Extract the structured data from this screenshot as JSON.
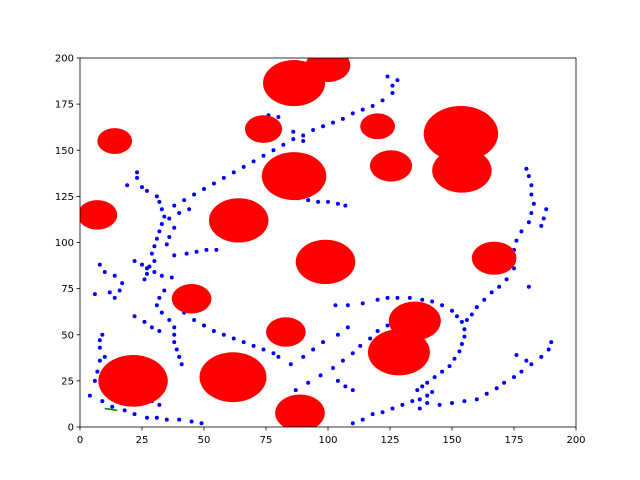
{
  "chart_data": {
    "type": "scatter",
    "xlim": [
      0,
      200
    ],
    "ylim": [
      0,
      200
    ],
    "xticks": [
      0,
      25,
      50,
      75,
      100,
      125,
      150,
      175,
      200
    ],
    "yticks": [
      0,
      25,
      50,
      75,
      100,
      125,
      150,
      175,
      200
    ],
    "series": [
      {
        "color": "#0000ff",
        "x": [
          124,
          128,
          126,
          126,
          122,
          118,
          114,
          110,
          106,
          102,
          98,
          94,
          90,
          86,
          82,
          78,
          74,
          70,
          66,
          62,
          58,
          54,
          50,
          46,
          42,
          38,
          76,
          80,
          86,
          90,
          88,
          92,
          96,
          100,
          104,
          107,
          23,
          23,
          19,
          25,
          27,
          31,
          32,
          33,
          34,
          33,
          32,
          31,
          30,
          29,
          30,
          28,
          27,
          26,
          36,
          40,
          44,
          38,
          36,
          35,
          38,
          43,
          47,
          51,
          55,
          8,
          10,
          14,
          17,
          16,
          14,
          6,
          12,
          22,
          25,
          27,
          30,
          33,
          37,
          34,
          32,
          31,
          33,
          36,
          38,
          38,
          38,
          39,
          40,
          41,
          22,
          26,
          29,
          32,
          42,
          46,
          50,
          54,
          58,
          62,
          66,
          70,
          74,
          78,
          80,
          103,
          108,
          114,
          120,
          124,
          128,
          133,
          138,
          142,
          146,
          150,
          152,
          154,
          155,
          155,
          154,
          153,
          151,
          149,
          146,
          143,
          140,
          138,
          136,
          164,
          168,
          171,
          175,
          178,
          182,
          186,
          189,
          190,
          160,
          155,
          150,
          145,
          140,
          137,
          180,
          181,
          182,
          182,
          183,
          182,
          181,
          178,
          176,
          175,
          175,
          175,
          172,
          169,
          166,
          163,
          160,
          158,
          156,
          188,
          187,
          186,
          181,
          176,
          180,
          4,
          9,
          13,
          18,
          22,
          27,
          31,
          35,
          40,
          45,
          49,
          110,
          114,
          118,
          122,
          126,
          130,
          134,
          137,
          140,
          142,
          87,
          92,
          97,
          102,
          106,
          110,
          113,
          117,
          120,
          124,
          128,
          104,
          107,
          110,
          108,
          104,
          98,
          94,
          90,
          85,
          7,
          6,
          8,
          8,
          9,
          8,
          10,
          12,
          14,
          17,
          20,
          23,
          26,
          29,
          32
        ],
        "y": [
          190,
          188,
          185,
          181,
          177,
          174,
          172,
          170,
          167,
          165,
          163,
          161,
          158,
          156,
          153,
          150,
          147,
          144,
          141,
          138,
          135,
          132,
          129,
          126,
          123,
          120,
          169,
          168,
          160,
          155,
          124,
          123,
          122,
          122,
          121,
          120,
          138,
          135,
          131,
          130,
          128,
          125,
          122,
          118,
          114,
          110,
          106,
          102,
          98,
          94,
          90,
          87,
          83,
          80,
          113,
          116,
          118,
          108,
          103,
          99,
          93,
          94,
          95,
          96,
          96,
          88,
          84,
          82,
          78,
          74,
          70,
          72,
          73,
          90,
          88,
          86,
          84,
          82,
          81,
          74,
          70,
          66,
          62,
          58,
          54,
          50,
          46,
          42,
          38,
          34,
          60,
          57,
          54,
          52,
          62,
          58,
          55,
          52,
          50,
          48,
          46,
          44,
          42,
          40,
          38,
          66,
          66,
          67,
          69,
          70,
          70,
          70,
          69,
          68,
          66,
          63,
          60,
          57,
          53,
          49,
          45,
          41,
          37,
          33,
          30,
          27,
          24,
          22,
          20,
          18,
          21,
          24,
          27,
          30,
          34,
          38,
          42,
          46,
          15,
          14,
          13,
          12,
          13,
          10,
          140,
          136,
          131,
          126,
          121,
          116,
          111,
          106,
          101,
          96,
          91,
          86,
          80,
          76,
          73,
          69,
          65,
          61,
          58,
          118,
          113,
          109,
          76,
          39,
          36,
          17,
          14,
          11,
          9,
          7,
          5,
          5,
          4,
          4,
          3,
          2,
          2,
          4,
          7,
          8,
          10,
          12,
          14,
          15,
          17,
          19,
          20,
          24,
          28,
          32,
          36,
          40,
          44,
          48,
          52,
          55,
          58,
          25,
          22,
          20,
          54,
          50,
          46,
          42,
          38,
          34,
          30,
          25,
          36,
          43,
          50,
          47,
          38,
          34,
          30,
          26,
          22,
          19,
          16,
          14,
          12
        ]
      },
      {
        "color": "#ff0000",
        "x": [
          86.3,
          100,
          14,
          74,
          120,
          153.6,
          125.4,
          154,
          86.3,
          7,
          64,
          99,
          167,
          45,
          135,
          83,
          128.6,
          21.4,
          61.7,
          88.7
        ],
        "y": [
          186.4,
          196,
          155,
          161.5,
          163,
          159,
          141.5,
          139,
          136,
          115,
          112,
          89.5,
          91.5,
          69.5,
          57.5,
          51.5,
          40.5,
          25,
          27,
          7.6
        ],
        "sizes": [
          12.5,
          9,
          7,
          7.5,
          7,
          15,
          8.5,
          12,
          13,
          8,
          12,
          12,
          9,
          8,
          10.5,
          8,
          12.5,
          14,
          13.5,
          10
        ]
      },
      {
        "color": "#008000",
        "x": [
          10,
          15
        ],
        "y": [
          10,
          9
        ]
      }
    ]
  }
}
